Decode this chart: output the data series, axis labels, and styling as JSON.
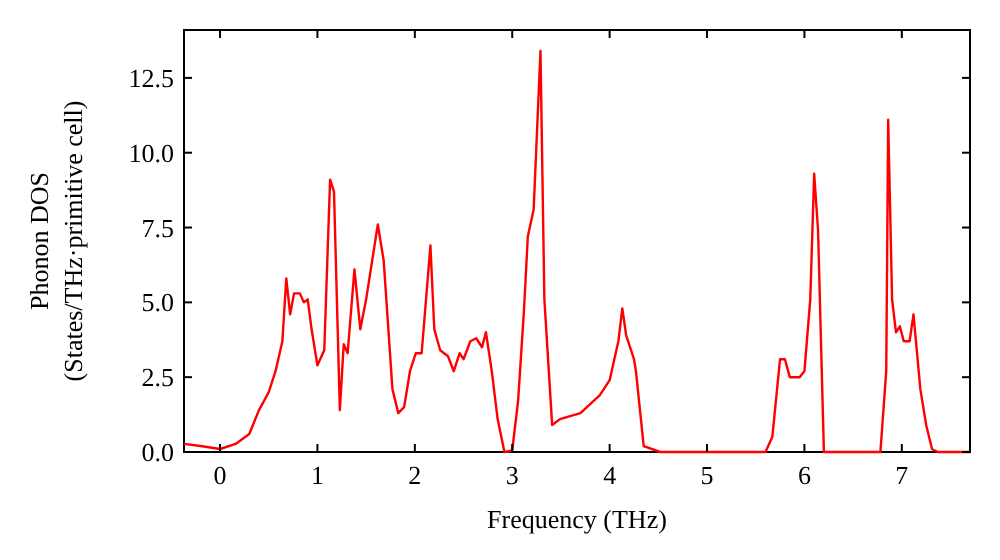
{
  "chart_data": {
    "type": "line",
    "xlabel": "Frequency (THz)",
    "ylabel": "Phonon DOS\n(States/THz·primitive cell)",
    "xlim": [
      -0.37,
      7.7
    ],
    "ylim": [
      0,
      14.1
    ],
    "xticks": [
      0,
      1,
      2,
      3,
      4,
      5,
      6,
      7
    ],
    "yticks": [
      {
        "value": 0,
        "label": "0.0"
      },
      {
        "value": 2.5,
        "label": "2.5"
      },
      {
        "value": 5,
        "label": "5.0"
      },
      {
        "value": 7.5,
        "label": "7.5"
      },
      {
        "value": 10,
        "label": "10.0"
      },
      {
        "value": 12.5,
        "label": "12.5"
      }
    ],
    "grid": false,
    "line_style": "solid",
    "series": [
      {
        "color": "#ff0000",
        "x": [
          -0.37,
          -0.2,
          0,
          0.16,
          0.3,
          0.4,
          0.5,
          0.57,
          0.64,
          0.68,
          0.72,
          0.76,
          0.82,
          0.86,
          0.9,
          0.94,
          1.0,
          1.07,
          1.13,
          1.17,
          1.23,
          1.27,
          1.31,
          1.38,
          1.44,
          1.5,
          1.62,
          1.68,
          1.77,
          1.83,
          1.89,
          1.95,
          2.01,
          2.07,
          2.16,
          2.2,
          2.26,
          2.34,
          2.4,
          2.46,
          2.5,
          2.57,
          2.63,
          2.69,
          2.73,
          2.79,
          2.85,
          2.92,
          3.0,
          3.06,
          3.12,
          3.16,
          3.22,
          3.29,
          3.33,
          3.41,
          3.49,
          3.7,
          3.9,
          4.0,
          4.09,
          4.13,
          4.17,
          4.25,
          4.27,
          4.35,
          4.52,
          5.6,
          5.67,
          5.75,
          5.8,
          5.85,
          5.95,
          6.0,
          6.06,
          6.1,
          6.14,
          6.2,
          6.78,
          6.84,
          6.86,
          6.9,
          6.94,
          6.98,
          7.02,
          7.08,
          7.12,
          7.19,
          7.25,
          7.31,
          7.37,
          7.7
        ],
        "values": [
          0.27,
          0.2,
          0.1,
          0.27,
          0.6,
          1.4,
          2.0,
          2.7,
          3.7,
          5.8,
          4.6,
          5.3,
          5.3,
          5.0,
          5.1,
          4.1,
          2.9,
          3.4,
          9.1,
          8.7,
          1.4,
          3.6,
          3.3,
          6.1,
          4.1,
          5.1,
          7.6,
          6.4,
          2.1,
          1.3,
          1.5,
          2.7,
          3.3,
          3.3,
          6.9,
          4.1,
          3.4,
          3.2,
          2.7,
          3.3,
          3.1,
          3.7,
          3.8,
          3.5,
          4.0,
          2.7,
          1.1,
          0,
          0.05,
          1.7,
          4.7,
          7.2,
          8.1,
          13.4,
          5.1,
          0.9,
          1.1,
          1.3,
          1.9,
          2.4,
          3.7,
          4.8,
          3.9,
          3.1,
          2.7,
          0.2,
          0,
          0,
          0.5,
          3.1,
          3.1,
          2.5,
          2.5,
          2.7,
          5.1,
          9.3,
          7.4,
          0,
          0,
          2.7,
          11.1,
          5.1,
          4.0,
          4.2,
          3.7,
          3.7,
          4.6,
          2.1,
          0.9,
          0.1,
          0,
          0
        ]
      }
    ]
  }
}
